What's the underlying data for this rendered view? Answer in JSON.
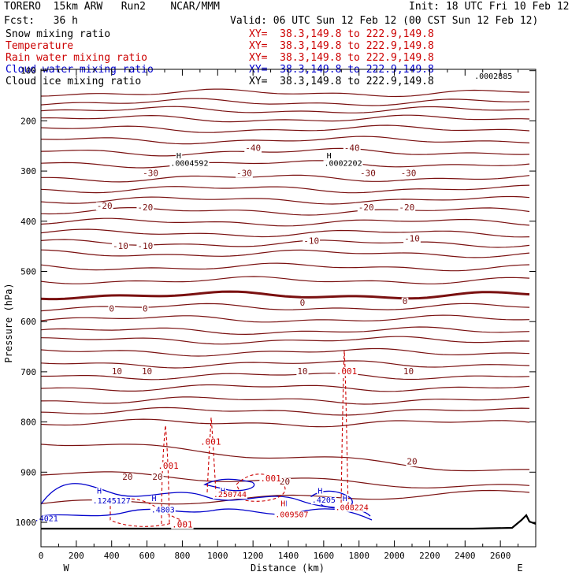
{
  "header": {
    "title_left": "TORERO  15km ARW   Run2    NCAR/MMM",
    "init": "Init: 18 UTC Fri 10 Feb 12",
    "fcst": "Fcst:   36 h",
    "valid": "Valid: 06 UTC Sun 12 Feb 12 (00 CST Sun 12 Feb 12)"
  },
  "legend": [
    {
      "label": "Snow mixing ratio",
      "xy": "XY=  38.3,149.8 to 222.9,149.8",
      "color": "#000000"
    },
    {
      "label": "Temperature",
      "xy": "XY=  38.3,149.8 to 222.9,149.8",
      "color": "#cc0000"
    },
    {
      "label": "Rain water mixing ratio",
      "xy": "XY=  38.3,149.8 to 222.9,149.8",
      "color": "#cc0000"
    },
    {
      "label": "Cloud water mixing ratio",
      "xy": "XY=  38.3,149.8 to 222.9,149.8",
      "color": "#0000cc"
    },
    {
      "label": "Cloud ice mixing ratio",
      "xy": "XY=  38.3,149.8 to 222.9,149.8",
      "color": "#000000"
    }
  ],
  "chart_data": {
    "type": "contour",
    "xlabel": "Distance (km)",
    "ylabel": "Pressure (hPa)",
    "xlim": [
      0,
      2800
    ],
    "ylim_hpa": [
      1050,
      100
    ],
    "x_ticks": [
      "0",
      "200",
      "400",
      "600",
      "800",
      "1000",
      "1200",
      "1400",
      "1600",
      "1800",
      "2000",
      "2200",
      "2400",
      "2600"
    ],
    "y_ticks": [
      "1000",
      "900",
      "800",
      "700",
      "600",
      "500",
      "400",
      "300",
      "200",
      "100"
    ],
    "x_end_labels": {
      "left": "W",
      "right": "E"
    },
    "temperature_labels": [
      {
        "text": "-40",
        "x": 1200,
        "p": 260
      },
      {
        "text": "-40",
        "x": 1760,
        "p": 260
      },
      {
        "text": "-30",
        "x": 620,
        "p": 310
      },
      {
        "text": "-30",
        "x": 1150,
        "p": 310
      },
      {
        "text": "-30",
        "x": 1850,
        "p": 310
      },
      {
        "text": "-30",
        "x": 2080,
        "p": 310
      },
      {
        "text": "-20",
        "x": 360,
        "p": 375
      },
      {
        "text": "-20",
        "x": 590,
        "p": 378
      },
      {
        "text": "-20",
        "x": 1840,
        "p": 378
      },
      {
        "text": "-20",
        "x": 2070,
        "p": 378
      },
      {
        "text": "-10",
        "x": 450,
        "p": 455
      },
      {
        "text": "-10",
        "x": 590,
        "p": 455
      },
      {
        "text": "-10",
        "x": 1530,
        "p": 445
      },
      {
        "text": "-10",
        "x": 2100,
        "p": 440
      },
      {
        "text": "0",
        "x": 400,
        "p": 580
      },
      {
        "text": "0",
        "x": 590,
        "p": 580
      },
      {
        "text": "0",
        "x": 1480,
        "p": 568
      },
      {
        "text": "0",
        "x": 2060,
        "p": 565
      },
      {
        "text": "10",
        "x": 430,
        "p": 705
      },
      {
        "text": "10",
        "x": 600,
        "p": 705
      },
      {
        "text": "10",
        "x": 1480,
        "p": 705
      },
      {
        "text": "10",
        "x": 2080,
        "p": 705
      },
      {
        "text": "20",
        "x": 490,
        "p": 915
      },
      {
        "text": "20",
        "x": 660,
        "p": 915
      },
      {
        "text": "20",
        "x": 1380,
        "p": 925
      },
      {
        "text": "20",
        "x": 2100,
        "p": 885
      }
    ],
    "rain_labels": [
      {
        "text": ".001",
        "x": 720,
        "p": 893
      },
      {
        "text": ".001",
        "x": 960,
        "p": 845
      },
      {
        "text": ".001",
        "x": 1730,
        "p": 705
      },
      {
        "text": ".001",
        "x": 1300,
        "p": 918
      },
      {
        "text": ".001",
        "x": 800,
        "p": 1010
      }
    ],
    "cloud_labels": [
      {
        "text": "H",
        "x": 330,
        "p": 943
      },
      {
        "text": ".1245127",
        "x": 400,
        "p": 962
      },
      {
        "text": "H",
        "x": 640,
        "p": 958
      },
      {
        "text": ".4803",
        "x": 690,
        "p": 980
      },
      {
        "text": "H",
        "x": 1580,
        "p": 943
      },
      {
        "text": ".4205",
        "x": 1600,
        "p": 961
      },
      {
        "text": "H",
        "x": 1720,
        "p": 958
      },
      {
        "text": "H",
        "x": 1380,
        "p": 968
      },
      {
        "text": "H",
        "x": 1030,
        "p": 943
      },
      {
        "text": ".4021",
        "x": 30,
        "p": 998
      }
    ],
    "rain_max_labels": [
      {
        "text": "H",
        "x": 1370,
        "p": 968
      },
      {
        "text": ".009507",
        "x": 1420,
        "p": 990
      },
      {
        "text": ".008224",
        "x": 1760,
        "p": 976
      },
      {
        "text": ".250744",
        "x": 1070,
        "p": 950
      }
    ],
    "snow_max_labels": [
      {
        "text": "H",
        "x": 780,
        "p": 275
      },
      {
        "text": ".0004592",
        "x": 840,
        "p": 290
      },
      {
        "text": "H",
        "x": 1630,
        "p": 275
      },
      {
        "text": ".0002202",
        "x": 1710,
        "p": 290
      },
      {
        "text": ".0002885",
        "x": 2560,
        "p": 116
      }
    ]
  }
}
